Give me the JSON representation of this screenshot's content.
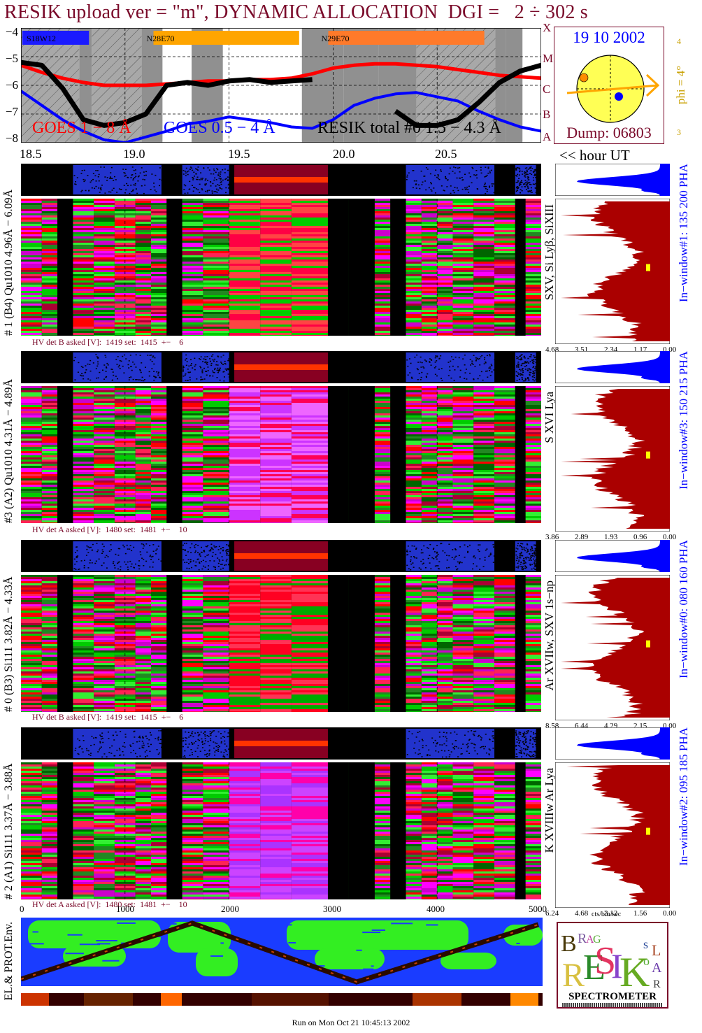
{
  "title": "RESIK upload ver = \"m\", DYNAMIC ALLOCATION  DGI =   2 ÷ 302 s",
  "goes": {
    "regions": [
      "S18W12",
      "N28E70",
      "N29E70"
    ],
    "y_ticks": [
      "−4",
      "−5",
      "−6",
      "−7",
      "−8"
    ],
    "class_letters": [
      "X",
      "M",
      "C",
      "B",
      "A"
    ],
    "legend_goes_long": "GOES 1 − 8 Å",
    "legend_goes_short": "GOES 0.5 − 4 Å",
    "legend_resik": "RESIK total #0 1.5 − 4.3 Å"
  },
  "sun": {
    "date": "19 10 2002",
    "phi_label": "phi = 4°",
    "phi_ticks": [
      "4",
      "3"
    ],
    "dump": "Dump: 06803"
  },
  "time_axis": {
    "ticks": [
      "18.5",
      "19.0",
      "19.5",
      "20.0",
      "20.5"
    ],
    "unit_label": "<< hour UT"
  },
  "channels": [
    {
      "left_label": "# 1 (B4) Qu1010 4.96Å − 6.09Å",
      "line_label": "SXV, Si Lyβ, SiXIII",
      "window_label": "In−window#1:  135 200 PHA",
      "hv_text": "HV det B asked [V]:  1419 set:  1415  +−    6",
      "spectrum_ticks": [
        "4.68",
        "3.51",
        "2.34",
        "1.17",
        "0.00"
      ]
    },
    {
      "left_label": "#3 (A2) Qu1010  4.31Å − 4.89Å",
      "line_label": "S XVI Lya",
      "window_label": "In−window#3:  150 215 PHA",
      "hv_text": "HV det A asked [V]:  1480 set:  1481  +−    10",
      "spectrum_ticks": [
        "3.86",
        "2.89",
        "1.93",
        "0.96",
        "0.00"
      ]
    },
    {
      "left_label": "# 0 (B3) Si111  3.82Å − 4.33Å",
      "line_label": "Ar XVIIw,  SXV 1s−np",
      "window_label": "In−window#0:  080 160 PHA",
      "hv_text": "HV det B asked [V]:  1419 set:  1415  +−    6",
      "spectrum_ticks": [
        "8.58",
        "6.44",
        "4.29",
        "2.15",
        "0.00"
      ]
    },
    {
      "left_label": "# 2 (A1) Si111  3.37Å − 3.88Å",
      "line_label": "K XVIIIw  Ar Lya",
      "window_label": "In−window#2:  095 185 PHA",
      "hv_text": "HV det A asked [V]:  1480 set:  1481  +−    10",
      "spectrum_ticks": [
        "6.24",
        "4.68",
        "3.12",
        "1.56",
        "0.00"
      ]
    }
  ],
  "bottom_axis": {
    "ticks": [
      "0",
      "1000",
      "2000",
      "3000",
      "4000",
      "5000"
    ],
    "unit_label": "cts/bin/sec"
  },
  "env_label": "EL.& PROT.Env.",
  "logo": {
    "letters_top": "BRAG",
    "letters_mid": "RESIK",
    "letters_right": "SOLAR",
    "caption": "SPECTROMETER"
  },
  "footer": "Run on Mon Oct 21 10:45:13 2002",
  "colors": {
    "title": "#7a0a2a",
    "goes_long": "#ff0000",
    "goes_short": "#0000ff",
    "region_orange": "#ffa500",
    "sun_fill": "#ffff55",
    "spectrum_red": "#aa0000",
    "pha_blue": "#0000ff",
    "dump_text": "#7a0a2a",
    "date_text": "#0000ff"
  },
  "chart_data": {
    "type": "line",
    "title": "RESIK upload ver = \"m\", DYNAMIC ALLOCATION  DGI =   2 ÷ 302 s",
    "xlabel": "hour UT",
    "ylabel": "",
    "xlim": [
      18.5,
      21.0
    ],
    "ylim": [
      -8,
      -4
    ],
    "x_ticks": [
      18.5,
      19.0,
      19.5,
      20.0,
      20.5
    ],
    "series": [
      {
        "name": "GOES 1 − 8 Å",
        "x": [
          18.5,
          18.6,
          18.7,
          18.8,
          18.9,
          19.0,
          19.1,
          19.2,
          19.3,
          19.4,
          19.5,
          19.6,
          19.7,
          19.8,
          19.9,
          20.0,
          20.1,
          20.2,
          20.3,
          20.4,
          20.5,
          20.6,
          20.7,
          20.8,
          20.9,
          21.0
        ],
        "y": [
          -5.3,
          -5.55,
          -5.75,
          -5.9,
          -6.0,
          -6.0,
          -6.0,
          -5.95,
          -5.9,
          -5.85,
          -5.85,
          -5.8,
          -5.8,
          -5.75,
          -5.6,
          -5.4,
          -5.3,
          -5.25,
          -5.25,
          -5.3,
          -5.35,
          -5.45,
          -5.55,
          -5.65,
          -5.7,
          -5.75
        ]
      },
      {
        "name": "GOES 0.5 − 4 Å",
        "x": [
          18.5,
          18.6,
          18.7,
          18.8,
          18.9,
          19.0,
          19.1,
          19.2,
          19.3,
          19.4,
          19.5,
          19.6,
          19.7,
          19.8,
          19.9,
          20.0,
          20.1,
          20.2,
          20.3,
          20.4,
          20.5,
          20.6,
          20.7,
          20.8,
          20.9,
          21.0
        ],
        "y": [
          -6.2,
          -6.7,
          -7.2,
          -7.6,
          -7.9,
          -8.0,
          -7.8,
          -7.6,
          -7.35,
          -7.25,
          -7.1,
          -7.2,
          -7.3,
          -7.45,
          -7.5,
          -7.2,
          -6.7,
          -6.45,
          -6.3,
          -6.25,
          -6.4,
          -6.55,
          -6.9,
          -7.2,
          -7.45,
          -7.6
        ]
      },
      {
        "name": "RESIK total #0 1.5 − 4.3 Å",
        "x": [
          18.5,
          18.6,
          18.7,
          18.8,
          18.9,
          19.0,
          19.1,
          19.2,
          19.3,
          19.4,
          19.5,
          19.6,
          19.7,
          19.8,
          19.9,
          20.0,
          20.1,
          20.2,
          20.3,
          20.4,
          20.5,
          20.6,
          20.7,
          20.8,
          20.9,
          21.0
        ],
        "y": [
          -5.2,
          -5.3,
          -6.1,
          -7.2,
          -7.4,
          -7.3,
          -7.0,
          -6.0,
          -5.9,
          -6.0,
          -5.85,
          -5.8,
          -5.9,
          -5.85,
          -5.8,
          null,
          null,
          null,
          -6.9,
          -7.4,
          -7.4,
          -7.2,
          -6.6,
          -5.9,
          -5.5,
          -5.3
        ]
      }
    ]
  }
}
